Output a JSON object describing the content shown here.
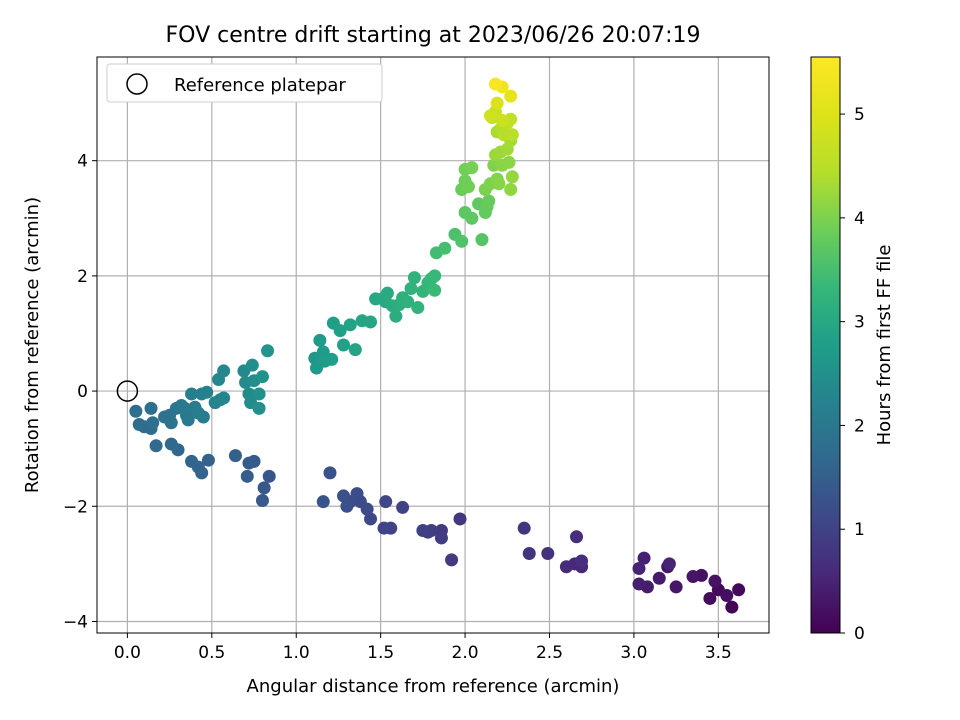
{
  "chart_data": {
    "type": "scatter",
    "title": "FOV centre drift starting at 2023/06/26 20:07:19",
    "xlabel": "Angular distance from reference (arcmin)",
    "ylabel": "Rotation from reference (arcmin)",
    "xlim": [
      -0.18,
      3.8
    ],
    "ylim": [
      -4.2,
      5.8
    ],
    "x_ticks": [
      0.0,
      0.5,
      1.0,
      1.5,
      2.0,
      2.5,
      3.0,
      3.5
    ],
    "x_tick_labels": [
      "0.0",
      "0.5",
      "1.0",
      "1.5",
      "2.0",
      "2.5",
      "3.0",
      "3.5"
    ],
    "y_ticks": [
      -4,
      -2,
      0,
      2,
      4
    ],
    "y_tick_labels": [
      "−4",
      "−2",
      "0",
      "2",
      "4"
    ],
    "grid": true,
    "colormap": "viridis",
    "colorbar": {
      "label": "Hours from first FF file",
      "range": [
        0,
        5.55
      ],
      "ticks": [
        0,
        1,
        2,
        3,
        4,
        5
      ],
      "tick_labels": [
        "0",
        "1",
        "2",
        "3",
        "4",
        "5"
      ]
    },
    "legend": {
      "position": "upper-left",
      "entries": [
        "Reference platepar"
      ]
    },
    "reference_point": {
      "x": 0.0,
      "y": 0.0
    },
    "series": [
      {
        "columns": [
          "x",
          "y",
          "hours"
        ],
        "points": [
          [
            3.58,
            -3.75,
            0.05
          ],
          [
            3.62,
            -3.45,
            0.08
          ],
          [
            3.5,
            -3.45,
            0.12
          ],
          [
            3.45,
            -3.6,
            0.15
          ],
          [
            3.55,
            -3.55,
            0.18
          ],
          [
            3.4,
            -3.2,
            0.22
          ],
          [
            3.48,
            -3.3,
            0.25
          ],
          [
            3.35,
            -3.22,
            0.28
          ],
          [
            3.25,
            -3.4,
            0.3
          ],
          [
            3.2,
            -3.05,
            0.32
          ],
          [
            3.15,
            -3.25,
            0.35
          ],
          [
            3.08,
            -3.4,
            0.38
          ],
          [
            3.03,
            -3.35,
            0.42
          ],
          [
            3.06,
            -2.9,
            0.45
          ],
          [
            3.03,
            -3.08,
            0.48
          ],
          [
            3.21,
            -3.0,
            0.5
          ],
          [
            2.69,
            -3.05,
            0.55
          ],
          [
            2.65,
            -3.0,
            0.58
          ],
          [
            2.6,
            -3.05,
            0.62
          ],
          [
            2.66,
            -2.53,
            0.65
          ],
          [
            2.69,
            -2.95,
            0.68
          ],
          [
            2.49,
            -2.82,
            0.72
          ],
          [
            2.38,
            -2.82,
            0.75
          ],
          [
            2.35,
            -2.38,
            0.78
          ],
          [
            1.97,
            -2.22,
            0.82
          ],
          [
            1.92,
            -2.93,
            0.85
          ],
          [
            1.86,
            -2.42,
            0.88
          ],
          [
            1.86,
            -2.55,
            0.9
          ],
          [
            1.8,
            -2.42,
            0.92
          ],
          [
            1.78,
            -2.45,
            0.95
          ],
          [
            1.75,
            -2.42,
            0.98
          ],
          [
            1.63,
            -2.02,
            1.0
          ],
          [
            1.56,
            -2.38,
            1.02
          ],
          [
            1.52,
            -2.38,
            1.05
          ],
          [
            1.53,
            -1.92,
            1.08
          ],
          [
            1.44,
            -2.22,
            1.1
          ],
          [
            1.42,
            -2.05,
            1.12
          ],
          [
            1.38,
            -1.92,
            1.15
          ],
          [
            1.36,
            -1.78,
            1.18
          ],
          [
            1.32,
            -1.92,
            1.2
          ],
          [
            1.3,
            -2.0,
            1.22
          ],
          [
            1.28,
            -1.82,
            1.25
          ],
          [
            1.2,
            -1.42,
            1.28
          ],
          [
            1.16,
            -1.92,
            1.3
          ],
          [
            0.84,
            -1.48,
            1.35
          ],
          [
            0.81,
            -1.68,
            1.38
          ],
          [
            0.8,
            -1.9,
            1.4
          ],
          [
            0.75,
            -1.22,
            1.42
          ],
          [
            0.72,
            -1.25,
            1.45
          ],
          [
            0.71,
            -1.48,
            1.48
          ],
          [
            0.64,
            -1.12,
            1.5
          ],
          [
            0.48,
            -1.2,
            1.55
          ],
          [
            0.44,
            -1.42,
            1.58
          ],
          [
            0.42,
            -1.32,
            1.6
          ],
          [
            0.38,
            -1.22,
            1.62
          ],
          [
            0.3,
            -1.02,
            1.65
          ],
          [
            0.26,
            -0.92,
            1.68
          ],
          [
            0.17,
            -0.95,
            1.7
          ],
          [
            0.14,
            -0.65,
            1.72
          ],
          [
            0.1,
            -0.62,
            1.75
          ],
          [
            0.07,
            -0.58,
            1.78
          ],
          [
            0.05,
            -0.35,
            1.8
          ],
          [
            0.14,
            -0.3,
            1.82
          ],
          [
            0.15,
            -0.55,
            1.85
          ],
          [
            0.22,
            -0.45,
            1.88
          ],
          [
            0.26,
            -0.55,
            1.9
          ],
          [
            0.25,
            -0.42,
            1.92
          ],
          [
            0.29,
            -0.3,
            1.95
          ],
          [
            0.32,
            -0.25,
            1.98
          ],
          [
            0.35,
            -0.42,
            2.0
          ],
          [
            0.36,
            -0.5,
            2.02
          ],
          [
            0.34,
            -0.3,
            2.05
          ],
          [
            0.4,
            -0.28,
            2.08
          ],
          [
            0.45,
            -0.45,
            2.1
          ],
          [
            0.42,
            -0.38,
            2.12
          ],
          [
            0.38,
            -0.05,
            2.15
          ],
          [
            0.44,
            -0.05,
            2.18
          ],
          [
            0.47,
            -0.02,
            2.2
          ],
          [
            0.52,
            -0.2,
            2.22
          ],
          [
            0.55,
            -0.15,
            2.25
          ],
          [
            0.57,
            -0.12,
            2.28
          ],
          [
            0.54,
            0.2,
            2.3
          ],
          [
            0.57,
            0.35,
            2.32
          ],
          [
            0.69,
            0.35,
            2.35
          ],
          [
            0.7,
            0.15,
            2.38
          ],
          [
            0.72,
            -0.05,
            2.4
          ],
          [
            0.73,
            -0.2,
            2.42
          ],
          [
            0.75,
            0.18,
            2.45
          ],
          [
            0.74,
            0.45,
            2.48
          ],
          [
            0.78,
            -0.05,
            2.5
          ],
          [
            0.78,
            -0.3,
            2.52
          ],
          [
            0.8,
            0.25,
            2.55
          ],
          [
            0.83,
            0.7,
            2.58
          ],
          [
            1.11,
            0.57,
            2.62
          ],
          [
            1.12,
            0.4,
            2.65
          ],
          [
            1.14,
            0.5,
            2.68
          ],
          [
            1.16,
            0.68,
            2.7
          ],
          [
            1.14,
            0.88,
            2.72
          ],
          [
            1.17,
            0.52,
            2.75
          ],
          [
            1.21,
            0.55,
            2.78
          ],
          [
            1.22,
            1.18,
            2.8
          ],
          [
            1.26,
            1.05,
            2.82
          ],
          [
            1.28,
            0.8,
            2.85
          ],
          [
            1.32,
            1.15,
            2.88
          ],
          [
            1.35,
            0.72,
            2.9
          ],
          [
            1.39,
            1.22,
            2.92
          ],
          [
            1.44,
            1.2,
            2.95
          ],
          [
            1.47,
            1.6,
            2.98
          ],
          [
            1.51,
            1.6,
            3.0
          ],
          [
            1.53,
            1.55,
            3.02
          ],
          [
            1.54,
            1.7,
            3.05
          ],
          [
            1.57,
            1.48,
            3.08
          ],
          [
            1.59,
            1.3,
            3.1
          ],
          [
            1.61,
            1.5,
            3.12
          ],
          [
            1.63,
            1.62,
            3.15
          ],
          [
            1.66,
            1.55,
            3.18
          ],
          [
            1.68,
            1.78,
            3.2
          ],
          [
            1.7,
            1.97,
            3.22
          ],
          [
            1.72,
            1.45,
            3.25
          ],
          [
            1.75,
            1.73,
            3.28
          ],
          [
            1.78,
            1.88,
            3.3
          ],
          [
            1.8,
            1.95,
            3.32
          ],
          [
            1.82,
            2.0,
            3.35
          ],
          [
            1.82,
            1.75,
            3.38
          ],
          [
            1.83,
            2.4,
            3.45
          ],
          [
            1.88,
            2.48,
            3.5
          ],
          [
            1.94,
            2.72,
            3.55
          ],
          [
            1.98,
            2.6,
            3.6
          ],
          [
            2.1,
            2.63,
            3.65
          ],
          [
            2.0,
            3.1,
            3.7
          ],
          [
            2.04,
            3.0,
            3.72
          ],
          [
            2.08,
            3.25,
            3.75
          ],
          [
            2.12,
            3.1,
            3.78
          ],
          [
            2.13,
            3.2,
            3.8
          ],
          [
            2.14,
            3.3,
            3.82
          ],
          [
            1.98,
            3.5,
            3.85
          ],
          [
            2.0,
            3.65,
            3.88
          ],
          [
            2.02,
            3.55,
            3.9
          ],
          [
            2.0,
            3.85,
            3.92
          ],
          [
            2.04,
            3.88,
            3.95
          ],
          [
            2.12,
            3.5,
            3.98
          ],
          [
            2.15,
            3.6,
            4.0
          ],
          [
            2.17,
            3.92,
            4.02
          ],
          [
            2.19,
            3.68,
            4.05
          ],
          [
            2.2,
            3.6,
            4.08
          ],
          [
            2.22,
            3.92,
            4.1
          ],
          [
            2.26,
            3.97,
            4.12
          ],
          [
            2.27,
            3.5,
            4.15
          ],
          [
            2.28,
            3.72,
            4.18
          ],
          [
            2.18,
            4.1,
            4.22
          ],
          [
            2.21,
            4.15,
            4.25
          ],
          [
            2.25,
            4.2,
            4.28
          ],
          [
            2.27,
            4.35,
            4.3
          ],
          [
            2.19,
            4.5,
            4.35
          ],
          [
            2.21,
            4.55,
            4.4
          ],
          [
            2.23,
            4.45,
            4.45
          ],
          [
            2.28,
            4.45,
            4.5
          ],
          [
            2.25,
            4.65,
            4.55
          ],
          [
            2.27,
            4.72,
            4.6
          ],
          [
            2.16,
            4.75,
            4.65
          ],
          [
            2.18,
            4.85,
            4.7
          ],
          [
            2.22,
            4.7,
            4.75
          ],
          [
            2.15,
            4.78,
            4.8
          ],
          [
            2.19,
            5.0,
            4.95
          ],
          [
            2.27,
            5.12,
            5.15
          ],
          [
            2.22,
            5.28,
            5.3
          ],
          [
            2.18,
            5.33,
            5.45
          ]
        ]
      }
    ]
  }
}
